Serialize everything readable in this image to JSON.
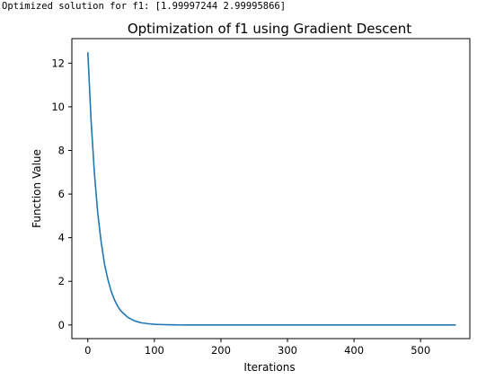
{
  "output": {
    "console_line": "Optimized solution for f1: [1.99997244 2.99995866]"
  },
  "chart_data": {
    "type": "line",
    "title": "Optimization of f1 using Gradient Descent",
    "xlabel": "Iterations",
    "ylabel": "Function Value",
    "xlim": [
      -24,
      574
    ],
    "ylim": [
      -0.625,
      13.125
    ],
    "xticks": [
      0,
      100,
      200,
      300,
      400,
      500
    ],
    "yticks": [
      0,
      2,
      4,
      6,
      8,
      10,
      12
    ],
    "grid": false,
    "series": [
      {
        "color": "#1f77b4",
        "x": [
          0,
          5,
          10,
          15,
          20,
          25,
          30,
          35,
          40,
          45,
          50,
          60,
          70,
          80,
          90,
          100,
          110,
          120,
          130,
          140,
          150,
          175,
          200,
          250,
          300,
          400,
          500,
          553
        ],
        "y": [
          12.5,
          9.3,
          6.9,
          5.1,
          3.8,
          2.8,
          2.1,
          1.55,
          1.15,
          0.85,
          0.63,
          0.35,
          0.19,
          0.1,
          0.06,
          0.03,
          0.018,
          0.01,
          0.006,
          0.003,
          0.002,
          0.0005,
          0.0001,
          0.0,
          0.0,
          0.0,
          0.0,
          0.0
        ]
      }
    ]
  }
}
